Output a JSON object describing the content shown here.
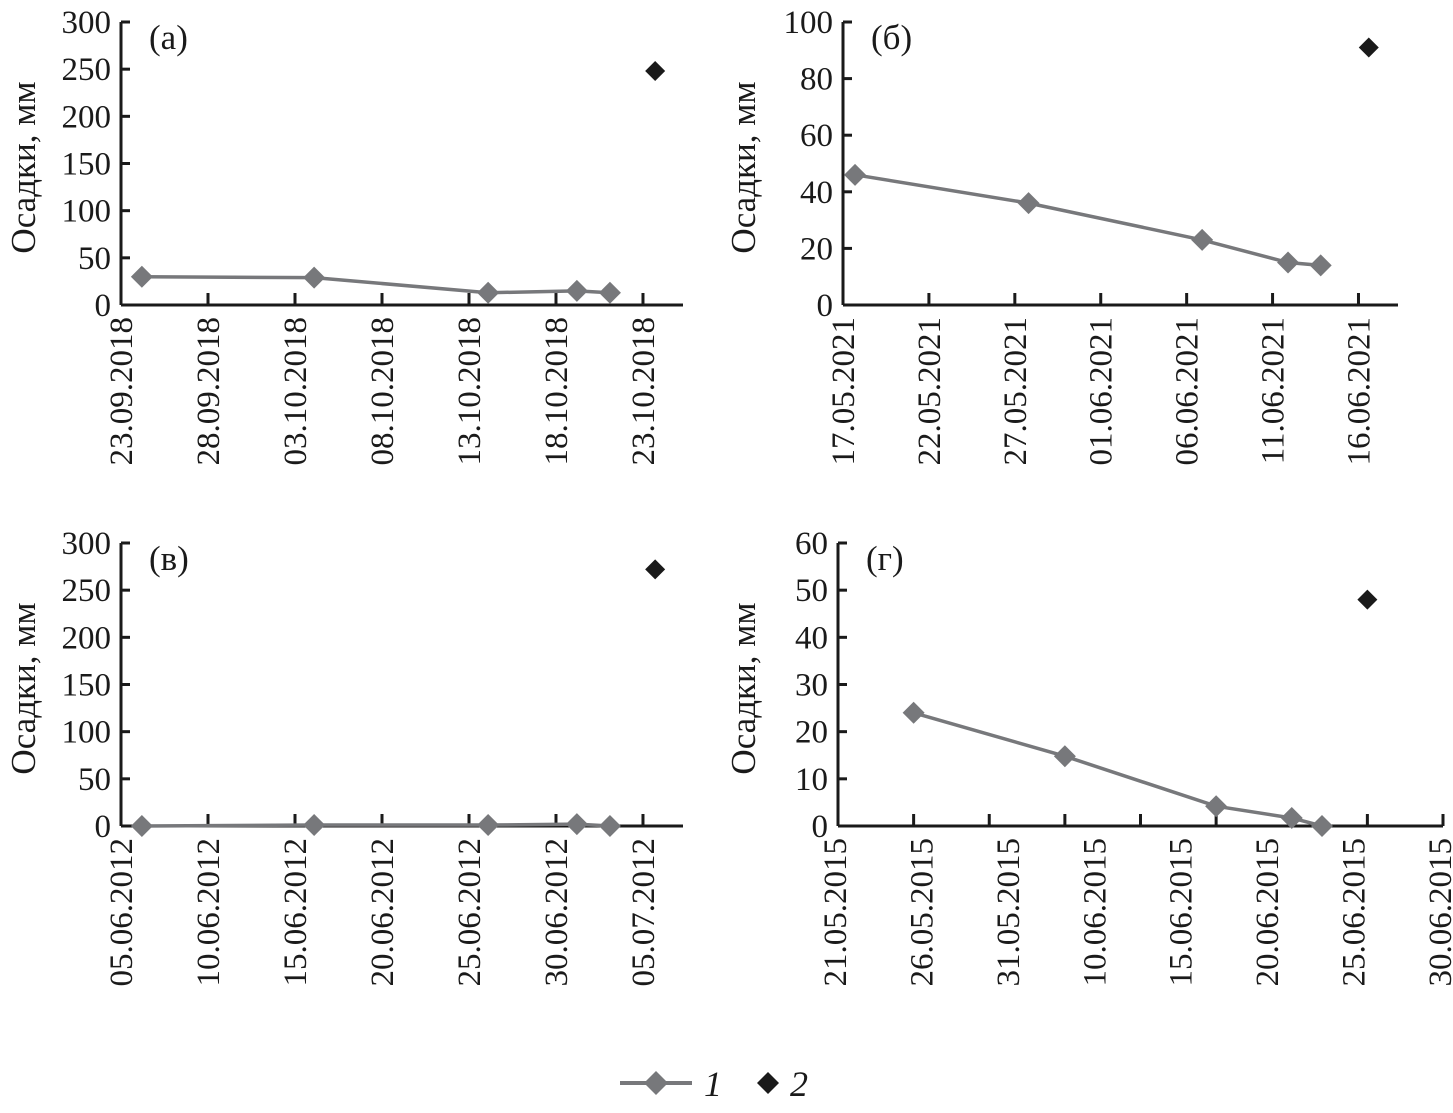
{
  "chart_data": [
    {
      "type": "line",
      "panel_label": "(а)",
      "ylabel": "Осадки, мм",
      "ylim": [
        0,
        300
      ],
      "yticks": [
        0,
        50,
        100,
        150,
        200,
        250,
        300
      ],
      "x_unit": "days from 23.09.2018",
      "xlim": [
        0,
        32.3
      ],
      "xtick_step_days": 5,
      "xtick_labels": [
        "23.09.2018",
        "28.09.2018",
        "03.10.2018",
        "08.10.2018",
        "13.10.2018",
        "18.10.2018",
        "23.10.2018"
      ],
      "series": [
        {
          "name": "1",
          "x": [
            1.2,
            11.1,
            21.1,
            26.2,
            28.1
          ],
          "y": [
            30,
            29,
            13,
            15,
            13
          ]
        },
        {
          "name": "2",
          "x": [
            30.7
          ],
          "y": [
            248
          ]
        }
      ]
    },
    {
      "type": "line",
      "panel_label": "(б)",
      "ylabel": "Осадки, мм",
      "ylim": [
        0,
        100
      ],
      "yticks": [
        0,
        20,
        40,
        60,
        80,
        100
      ],
      "x_unit": "days from 17.05.2021",
      "xlim": [
        0,
        32.3
      ],
      "xtick_step_days": 5,
      "xtick_labels": [
        "17.05.2021",
        "22.05.2021",
        "27.05.2021",
        "01.06.2021",
        "06.06.2021",
        "11.06.2021",
        "16.06.2021"
      ],
      "series": [
        {
          "name": "1",
          "x": [
            0.7,
            10.8,
            20.9,
            25.9,
            27.8
          ],
          "y": [
            46,
            36,
            23,
            15,
            14
          ]
        },
        {
          "name": "2",
          "x": [
            30.6
          ],
          "y": [
            91
          ]
        }
      ]
    },
    {
      "type": "line",
      "panel_label": "(в)",
      "ylabel": "Осадки, мм",
      "ylim": [
        0,
        300
      ],
      "yticks": [
        0,
        50,
        100,
        150,
        200,
        250,
        300
      ],
      "x_unit": "days from 05.06.2012",
      "xlim": [
        0,
        32.3
      ],
      "xtick_step_days": 5,
      "xtick_labels": [
        "05.06.2012",
        "10.06.2012",
        "15.06.2012",
        "20.06.2012",
        "25.06.2012",
        "30.06.2012",
        "05.07.2012"
      ],
      "series": [
        {
          "name": "1",
          "x": [
            1.2,
            11.1,
            21.1,
            26.2,
            28.1
          ],
          "y": [
            0,
            1,
            1,
            2,
            0
          ]
        },
        {
          "name": "2",
          "x": [
            30.7
          ],
          "y": [
            272
          ]
        }
      ]
    },
    {
      "type": "line",
      "panel_label": "(г)",
      "ylabel": "Осадки, мм",
      "ylim": [
        0,
        60
      ],
      "yticks": [
        0,
        10,
        20,
        30,
        40,
        50,
        60
      ],
      "x_unit": "tick intervals from axis start",
      "xlim": [
        0,
        8
      ],
      "xtick_step_days": 1,
      "xtick_labels": [
        "21.05.2015",
        "26.05.2015",
        "31.05.2015",
        "10.06.2015",
        "15.06.2015",
        "20.06.2015",
        "25.06.2015",
        "30.06.2015"
      ],
      "series": [
        {
          "name": "1",
          "x": [
            1,
            3,
            5,
            6,
            6.4
          ],
          "y": [
            24,
            14.8,
            4.2,
            1.7,
            0
          ]
        },
        {
          "name": "2",
          "x": [
            7
          ],
          "y": [
            48
          ]
        }
      ]
    }
  ],
  "legend": {
    "items": [
      {
        "label": "1",
        "color": "#77787b"
      },
      {
        "label": "2",
        "color": "#1a1a1a"
      }
    ],
    "placement": "bottom-center"
  },
  "colors": {
    "series1": "#77787b",
    "series2": "#1a1a1a",
    "axis": "#1a1a1a"
  }
}
